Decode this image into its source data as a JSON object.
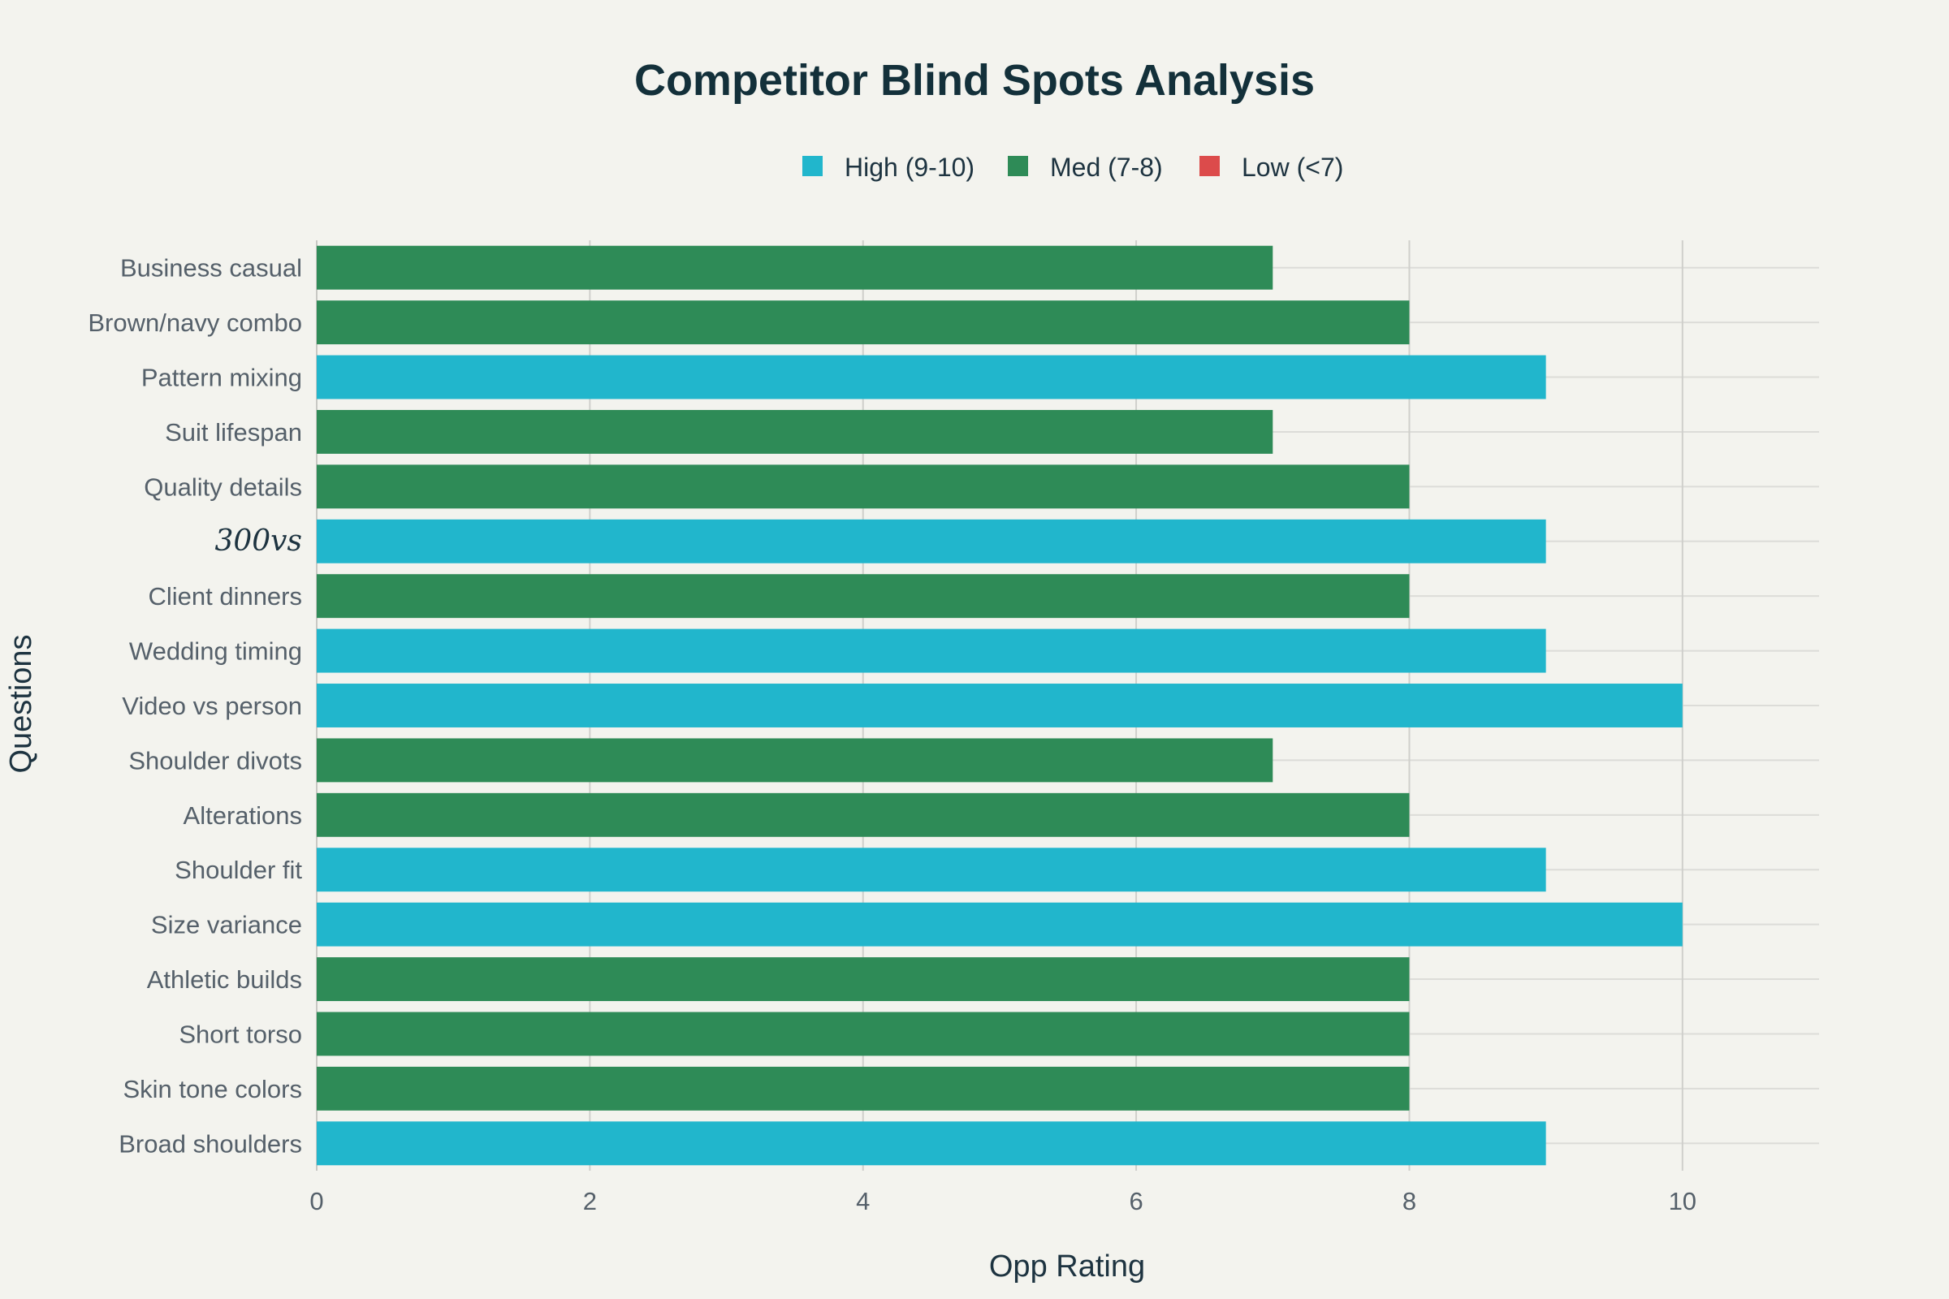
{
  "chart_data": {
    "type": "bar",
    "orientation": "horizontal",
    "title": "Competitor Blind Spots Analysis",
    "xlabel": "Opp Rating",
    "ylabel": "Questions",
    "xlim": [
      0,
      11
    ],
    "xticks": [
      0,
      2,
      4,
      6,
      8,
      10
    ],
    "grid": true,
    "legend_position": "top-center",
    "legend": [
      {
        "name": "High (9-10)",
        "color": "#21b6cc"
      },
      {
        "name": "Med (7-8)",
        "color": "#2e8b57"
      },
      {
        "name": "Low (<7)",
        "color": "#dc4b4b"
      }
    ],
    "categories": [
      "Business casual",
      "Brown/navy combo",
      "Pattern mixing",
      "Suit lifespan",
      "Quality details",
      "300vs",
      "Client dinners",
      "Wedding timing",
      "Video vs person",
      "Shoulder divots",
      "Alterations",
      "Shoulder fit",
      "Size variance",
      "Athletic builds",
      "Short torso",
      "Skin tone colors",
      "Broad shoulders"
    ],
    "values": [
      7,
      8,
      9,
      7,
      8,
      9,
      8,
      9,
      10,
      7,
      8,
      9,
      10,
      8,
      8,
      8,
      9
    ],
    "groups": [
      "Med (7-8)",
      "Med (7-8)",
      "High (9-10)",
      "Med (7-8)",
      "Med (7-8)",
      "High (9-10)",
      "Med (7-8)",
      "High (9-10)",
      "High (9-10)",
      "Med (7-8)",
      "Med (7-8)",
      "High (9-10)",
      "High (9-10)",
      "Med (7-8)",
      "Med (7-8)",
      "Med (7-8)",
      "High (9-10)"
    ]
  }
}
